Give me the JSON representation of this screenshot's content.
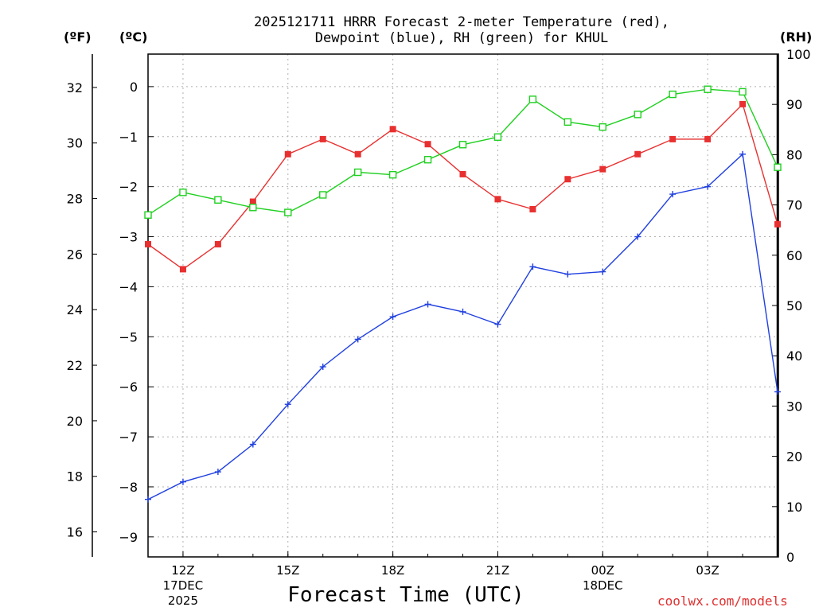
{
  "header": {
    "title_line1": "2025121711 HRRR Forecast 2-meter Temperature (red),",
    "title_line2": "Dewpoint (blue), RH (green) for KHUL"
  },
  "axes": {
    "unit_f": "(ºF)",
    "unit_c": "(ºC)",
    "unit_rh": "(RH)",
    "xtitle": "Forecast Time (UTC)",
    "credit": "coolwx.com/models"
  },
  "colors": {
    "temperature": "#e83030",
    "dewpoint": "#2040e0",
    "rh": "#20d020",
    "grid": "#b0b0b0"
  },
  "chart_data": {
    "type": "line",
    "title": "2025121711 HRRR Forecast 2-meter Temperature (red), Dewpoint (blue), RH (green) for KHUL",
    "xlabel": "Forecast Time (UTC)",
    "x": [
      11,
      12,
      13,
      14,
      15,
      16,
      17,
      18,
      19,
      20,
      21,
      22,
      23,
      24,
      25,
      26,
      27,
      28,
      29
    ],
    "xlim": [
      11,
      29
    ],
    "xticks": [
      {
        "x": 12,
        "label": "12Z",
        "line2": "17DEC",
        "line3": "2025"
      },
      {
        "x": 15,
        "label": "15Z",
        "line2": "",
        "line3": ""
      },
      {
        "x": 18,
        "label": "18Z",
        "line2": "",
        "line3": ""
      },
      {
        "x": 21,
        "label": "21Z",
        "line2": "",
        "line3": ""
      },
      {
        "x": 24,
        "label": "00Z",
        "line2": "18DEC",
        "line3": ""
      },
      {
        "x": 27,
        "label": "03Z",
        "line2": "",
        "line3": ""
      }
    ],
    "ylim_c": [
      -9.4,
      0.65
    ],
    "ylim_f": [
      15.1,
      33.2
    ],
    "ylim_rh": [
      0,
      100
    ],
    "ticks_c": [
      "0",
      "−1",
      "−2",
      "−3",
      "−4",
      "−5",
      "−6",
      "−7",
      "−8",
      "−9"
    ],
    "ticks_c_values": [
      0,
      -1,
      -2,
      -3,
      -4,
      -5,
      -6,
      -7,
      -8,
      -9
    ],
    "ticks_f": [
      "32",
      "30",
      "28",
      "26",
      "24",
      "22",
      "20",
      "18",
      "16"
    ],
    "ticks_f_values": [
      32,
      30,
      28,
      26,
      24,
      22,
      20,
      18,
      16
    ],
    "ticks_rh": [
      "0",
      "10",
      "20",
      "30",
      "40",
      "50",
      "60",
      "70",
      "80",
      "90",
      "100"
    ],
    "ticks_rh_values": [
      0,
      10,
      20,
      30,
      40,
      50,
      60,
      70,
      80,
      90,
      100
    ],
    "series": [
      {
        "name": "Temperature",
        "axis": "c",
        "marker": "filled-square",
        "values": [
          -3.15,
          -3.65,
          -3.15,
          -2.3,
          -1.35,
          -1.05,
          -1.35,
          -0.85,
          -1.15,
          -1.75,
          -2.25,
          -2.45,
          -1.85,
          -1.65,
          -1.35,
          -1.05,
          -1.05,
          -0.35,
          -2.75
        ]
      },
      {
        "name": "Dewpoint",
        "axis": "c",
        "marker": "plus",
        "values": [
          -8.25,
          -7.9,
          -7.7,
          -7.15,
          -6.35,
          -5.6,
          -5.05,
          -4.6,
          -4.35,
          -4.5,
          -4.75,
          -3.6,
          -3.75,
          -3.7,
          -3.0,
          -2.15,
          -2.0,
          -1.35,
          -6.1
        ]
      },
      {
        "name": "RH",
        "axis": "rh",
        "marker": "open-square",
        "values": [
          68,
          72.5,
          71,
          69.5,
          68.5,
          72,
          76.5,
          76,
          79,
          82,
          83.5,
          91,
          86.5,
          85.5,
          88,
          92,
          93,
          92.5,
          77.5
        ]
      }
    ]
  }
}
